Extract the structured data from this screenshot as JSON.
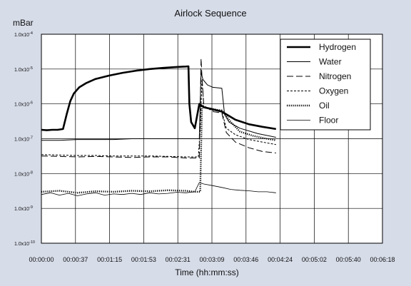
{
  "chart_data": {
    "type": "line",
    "title": "Airlock Sequence",
    "ylabel": "mBar",
    "xlabel": "Time (hh:mm:ss)",
    "yscale": "log",
    "ylim": [
      "1.0e-10",
      "1.0e-4"
    ],
    "ytick_labels": [
      {
        "base": "1.0x10",
        "exp": "-4"
      },
      {
        "base": "1.0x10",
        "exp": "-5"
      },
      {
        "base": "1.0x10",
        "exp": "-6"
      },
      {
        "base": "1.0x10",
        "exp": "-7"
      },
      {
        "base": "1.0x10",
        "exp": "-8"
      },
      {
        "base": "1.0x10",
        "exp": "-9"
      },
      {
        "base": "1.0x10",
        "exp": "-10"
      }
    ],
    "xlim": [
      0,
      378
    ],
    "xtick_labels": [
      "00:00:00",
      "00:00:37",
      "00:01:15",
      "00:01:53",
      "00:02:31",
      "00:03:09",
      "00:03:46",
      "00:04:24",
      "00:05:02",
      "00:05:40",
      "00:06:18"
    ],
    "grid": true,
    "legend_position": "top-right",
    "series": [
      {
        "name": "Hydrogen",
        "style": "solid-thick",
        "color": "#000000",
        "x": [
          0,
          6,
          12,
          18,
          24,
          28,
          32,
          36,
          42,
          50,
          60,
          75,
          90,
          105,
          120,
          135,
          150,
          160,
          163,
          164,
          166,
          170,
          175,
          180,
          190,
          200,
          215,
          230,
          245,
          260
        ],
        "y": [
          1.8e-07,
          1.75e-07,
          1.8e-07,
          1.8e-07,
          1.9e-07,
          5e-07,
          1.2e-06,
          2e-06,
          3e-06,
          4e-06,
          5.2e-06,
          6.5e-06,
          7.8e-06,
          9e-06,
          1e-05,
          1.08e-05,
          1.15e-05,
          1.18e-05,
          1.2e-05,
          1e-06,
          3e-07,
          2e-07,
          1e-06,
          8e-07,
          7e-07,
          6e-07,
          3.5e-07,
          2.6e-07,
          2.2e-07,
          1.9e-07
        ]
      },
      {
        "name": "Water",
        "style": "solid-thin",
        "color": "#000000",
        "x": [
          0,
          20,
          40,
          60,
          80,
          100,
          120,
          140,
          160,
          170,
          175,
          177,
          179,
          184,
          190,
          200,
          203,
          208,
          220,
          240,
          260
        ],
        "y": [
          9e-08,
          9e-08,
          9.5e-08,
          9.5e-08,
          9.5e-08,
          1e-07,
          1e-07,
          1e-07,
          1e-07,
          1e-07,
          1e-07,
          8e-06,
          5e-06,
          3.5e-06,
          3e-06,
          2.8e-06,
          5e-07,
          3e-07,
          2e-07,
          1.4e-07,
          1.1e-07
        ]
      },
      {
        "name": "Nitrogen",
        "style": "dash-long",
        "color": "#000000",
        "x": [
          0,
          20,
          40,
          60,
          80,
          100,
          120,
          140,
          160,
          170,
          175,
          177,
          178,
          180,
          190,
          200,
          205,
          215,
          230,
          245,
          260
        ],
        "y": [
          3.2e-08,
          3.1e-08,
          3e-08,
          3.1e-08,
          3e-08,
          2.9e-08,
          3e-08,
          3e-08,
          2.8e-08,
          2.8e-08,
          2.8e-08,
          2e-05,
          6e-06,
          9e-07,
          6e-07,
          5.5e-07,
          1.5e-07,
          8e-08,
          5.5e-08,
          4.3e-08,
          3.9e-08
        ]
      },
      {
        "name": "Oxygen",
        "style": "dash-short",
        "color": "#000000",
        "x": [
          0,
          20,
          40,
          60,
          80,
          100,
          120,
          140,
          160,
          170,
          174,
          176,
          178,
          180,
          190,
          200,
          205,
          215,
          230,
          245,
          260
        ],
        "y": [
          3.5e-08,
          3.4e-08,
          3.3e-08,
          3.3e-08,
          3.2e-08,
          3.2e-08,
          3.2e-08,
          3.1e-08,
          3e-08,
          3e-08,
          3e-08,
          2e-07,
          5e-06,
          8e-07,
          6.5e-07,
          6e-07,
          2e-07,
          1.3e-07,
          9.5e-08,
          8e-08,
          6.8e-08
        ]
      },
      {
        "name": "Oil",
        "style": "dotted-thick",
        "color": "#000000",
        "x": [
          0,
          20,
          40,
          60,
          80,
          100,
          120,
          140,
          160,
          170,
          176,
          178,
          180,
          190,
          200,
          210,
          220,
          235,
          250,
          260
        ],
        "y": [
          3e-09,
          3.2e-09,
          2.8e-09,
          3.1e-09,
          3e-09,
          3.2e-09,
          3.1e-09,
          3.3e-09,
          3.2e-09,
          3e-09,
          3e-09,
          9e-07,
          8e-07,
          7e-07,
          6.5e-07,
          3e-07,
          1.6e-07,
          1.2e-07,
          1e-07,
          9e-08
        ]
      },
      {
        "name": "Floor",
        "style": "solid-hair",
        "color": "#000000",
        "x": [
          0,
          10,
          20,
          30,
          40,
          50,
          60,
          70,
          80,
          90,
          100,
          110,
          120,
          130,
          140,
          150,
          160,
          170,
          175,
          180,
          190,
          200,
          210,
          220,
          230,
          240,
          250,
          260
        ],
        "y": [
          2.5e-09,
          2.8e-09,
          2.4e-09,
          2.7e-09,
          2.3e-09,
          2.6e-09,
          2.8e-09,
          2.4e-09,
          2.6e-09,
          2.5e-09,
          2.7e-09,
          2.5e-09,
          2.8e-09,
          2.6e-09,
          2.7e-09,
          2.9e-09,
          2.8e-09,
          3e-09,
          5.5e-09,
          5e-09,
          4.5e-09,
          4e-09,
          3.5e-09,
          3.3e-09,
          3.2e-09,
          3e-09,
          3e-09,
          2.8e-09
        ]
      }
    ]
  }
}
